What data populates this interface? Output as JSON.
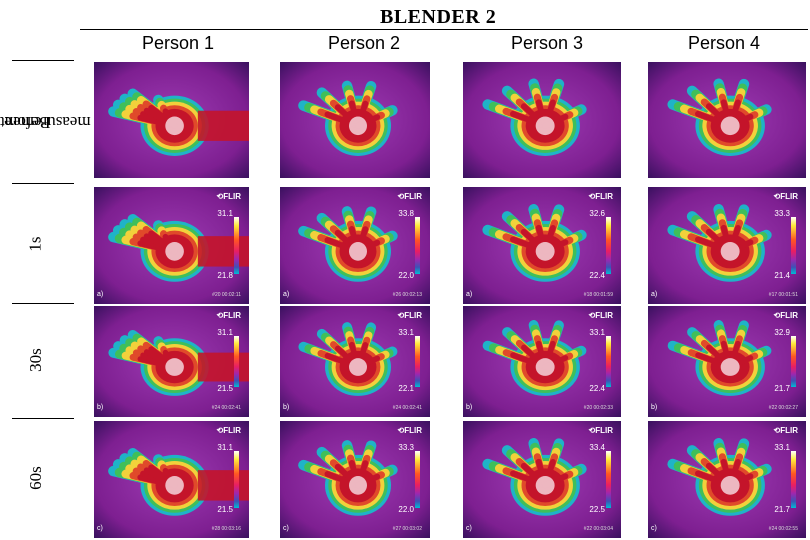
{
  "title": "BLENDER 2",
  "columns": [
    "Person 1",
    "Person 2",
    "Person 3",
    "Person 4"
  ],
  "rows": [
    {
      "label": "Before measurement",
      "label_lines": [
        "Before",
        "measurement"
      ]
    },
    {
      "label": "1s",
      "label_lines": [
        "1s"
      ]
    },
    {
      "label": "30s",
      "label_lines": [
        "30s"
      ]
    },
    {
      "label": "60s",
      "label_lines": [
        "60s"
      ]
    }
  ],
  "thermal_images": [
    [
      {},
      {},
      {},
      {}
    ],
    [
      {
        "brand": "FLIR",
        "tmax": "31.1",
        "tmin": "21.8",
        "stamp": "#20 00:02:11",
        "panel": "a)"
      },
      {
        "brand": "FLIR",
        "tmax": "33.8",
        "tmin": "22.0",
        "stamp": "#26 00:02:13",
        "panel": "a)"
      },
      {
        "brand": "FLIR",
        "tmax": "32.6",
        "tmin": "22.4",
        "stamp": "#18 00:01:59",
        "panel": "a)"
      },
      {
        "brand": "FLIR",
        "tmax": "33.3",
        "tmin": "21.4",
        "stamp": "#17 00:01:51",
        "panel": "a)"
      }
    ],
    [
      {
        "brand": "FLIR",
        "tmax": "31.1",
        "tmin": "21.5",
        "stamp": "#24 00:02:41",
        "panel": "b)"
      },
      {
        "brand": "FLIR",
        "tmax": "33.1",
        "tmin": "22.1",
        "stamp": "#24 00:02:41",
        "panel": "b)"
      },
      {
        "brand": "FLIR",
        "tmax": "33.1",
        "tmin": "22.4",
        "stamp": "#20 00:02:33",
        "panel": "b)"
      },
      {
        "brand": "FLIR",
        "tmax": "32.9",
        "tmin": "21.7",
        "stamp": "#22 00:02:27",
        "panel": "b)"
      }
    ],
    [
      {
        "brand": "FLIR",
        "tmax": "31.1",
        "tmin": "21.5",
        "stamp": "#28 00:03:16",
        "panel": "c)"
      },
      {
        "brand": "FLIR",
        "tmax": "33.3",
        "tmin": "22.0",
        "stamp": "#27 00:03:02",
        "panel": "c)"
      },
      {
        "brand": "FLIR",
        "tmax": "33.4",
        "tmin": "22.5",
        "stamp": "#22 00:03:04",
        "panel": "c)"
      },
      {
        "brand": "FLIR",
        "tmax": "33.1",
        "tmin": "21.7",
        "stamp": "#24 00:02:55",
        "panel": "c)"
      }
    ]
  ],
  "colors": {
    "background_magenta": "#8e2a9e",
    "hand_red": "#c8102e",
    "hand_yellow": "#f4d03f",
    "hand_cyan": "#20c4c8"
  }
}
